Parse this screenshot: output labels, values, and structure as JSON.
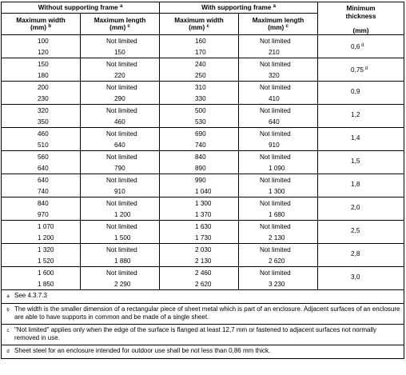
{
  "header": {
    "without_frame": "Without supporting frame",
    "without_frame_sup": "a",
    "with_frame": "With supporting frame",
    "with_frame_sup": "a",
    "min_thickness": "Minimum thickness",
    "max_width": "Maximum width",
    "max_length": "Maximum length",
    "unit_b": "(mm)",
    "unit_c": "(mm)",
    "sup_b": "b",
    "sup_c": "c",
    "thickness_unit": "(mm)"
  },
  "rows": [
    {
      "w1": [
        "100",
        "120"
      ],
      "l1": [
        "Not limited",
        "150"
      ],
      "w2": [
        "160",
        "170"
      ],
      "l2": [
        "Not limited",
        "210"
      ],
      "t": "0,6",
      "tsup": "d"
    },
    {
      "w1": [
        "150",
        "180"
      ],
      "l1": [
        "Not limited",
        "220"
      ],
      "w2": [
        "240",
        "250"
      ],
      "l2": [
        "Not limited",
        "320"
      ],
      "t": "0,75",
      "tsup": "d"
    },
    {
      "w1": [
        "200",
        "230"
      ],
      "l1": [
        "Not limited",
        "290"
      ],
      "w2": [
        "310",
        "330"
      ],
      "l2": [
        "Not limited",
        "410"
      ],
      "t": "0,9",
      "tsup": ""
    },
    {
      "w1": [
        "320",
        "350"
      ],
      "l1": [
        "Not limited",
        "460"
      ],
      "w2": [
        "500",
        "530"
      ],
      "l2": [
        "Not limited",
        "640"
      ],
      "t": "1,2",
      "tsup": ""
    },
    {
      "w1": [
        "460",
        "510"
      ],
      "l1": [
        "Not limited",
        "640"
      ],
      "w2": [
        "690",
        "740"
      ],
      "l2": [
        "Not limited",
        "910"
      ],
      "t": "1,4",
      "tsup": ""
    },
    {
      "w1": [
        "560",
        "640"
      ],
      "l1": [
        "Not limited",
        "790"
      ],
      "w2": [
        "840",
        "890"
      ],
      "l2": [
        "Not limited",
        "1 090"
      ],
      "t": "1,5",
      "tsup": ""
    },
    {
      "w1": [
        "640",
        "740"
      ],
      "l1": [
        "Not limited",
        "910"
      ],
      "w2": [
        "990",
        "1 040"
      ],
      "l2": [
        "Not limited",
        "1 300"
      ],
      "t": "1,8",
      "tsup": ""
    },
    {
      "w1": [
        "840",
        "970"
      ],
      "l1": [
        "Not limited",
        "1 200"
      ],
      "w2": [
        "1 300",
        "1 370"
      ],
      "l2": [
        "Not limited",
        "1 680"
      ],
      "t": "2,0",
      "tsup": ""
    },
    {
      "w1": [
        "1 070",
        "1 200"
      ],
      "l1": [
        "Not limited",
        "1 500"
      ],
      "w2": [
        "1 630",
        "1 730"
      ],
      "l2": [
        "Not limited",
        "2 130"
      ],
      "t": "2,5",
      "tsup": ""
    },
    {
      "w1": [
        "1 320",
        "1 520"
      ],
      "l1": [
        "Not limited",
        "1 880"
      ],
      "w2": [
        "2 030",
        "2 130"
      ],
      "l2": [
        "Not limited",
        "2 620"
      ],
      "t": "2,8",
      "tsup": ""
    },
    {
      "w1": [
        "1 600",
        "1 850"
      ],
      "l1": [
        "Not limited",
        "2 290"
      ],
      "w2": [
        "2 460",
        "2 620"
      ],
      "l2": [
        "Not limited",
        "3 230"
      ],
      "t": "3,0",
      "tsup": ""
    }
  ],
  "footnotes": [
    {
      "mark": "a",
      "text": "See 4.3.7.3"
    },
    {
      "mark": "b",
      "text": "The width is the smaller dimension of a rectangular piece of sheet metal which is part of an enclosure. Adjacent surfaces of an enclosure are able to have supports in common and be made of a single sheet."
    },
    {
      "mark": "c",
      "text": "\"Not limited\" applies only when the edge of the surface is flanged at least 12,7 mm or fastened to adjacent surfaces not normally removed in use."
    },
    {
      "mark": "d",
      "text": "Sheet steel for an enclosure intended for outdoor use shall be not less than 0,86 mm thick."
    }
  ]
}
